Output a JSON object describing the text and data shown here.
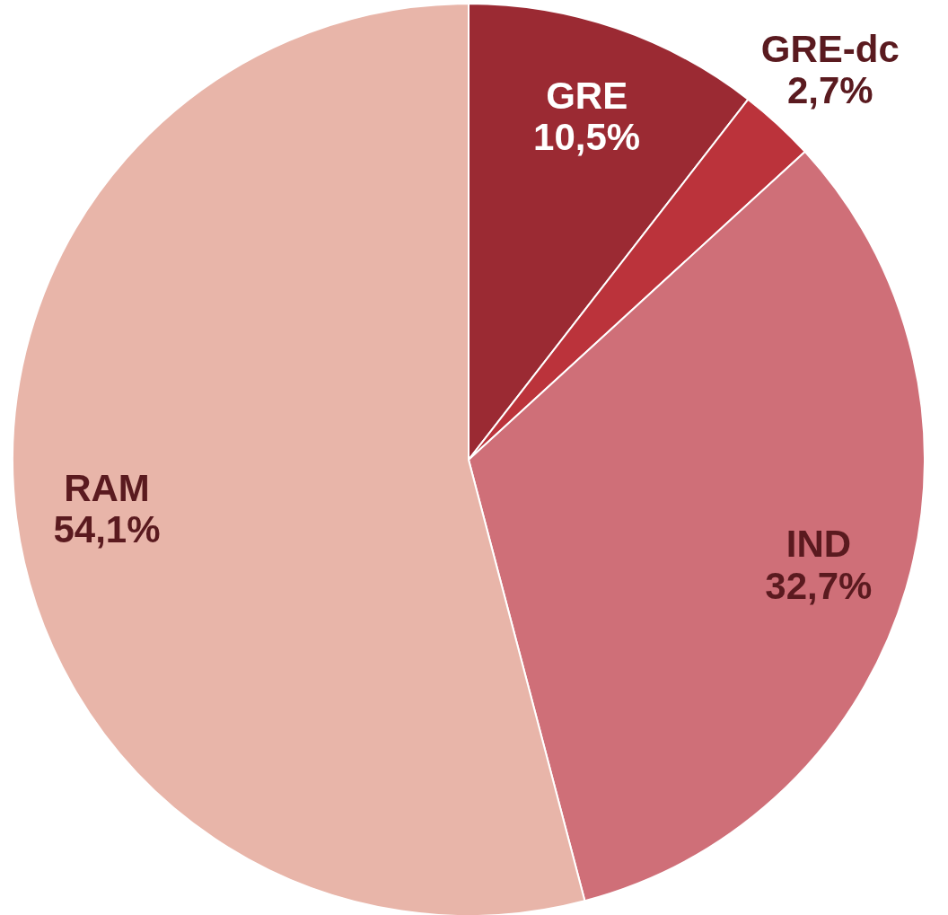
{
  "chart_data": {
    "type": "pie",
    "categories": [
      "GRE",
      "GRE-dc",
      "IND",
      "RAM"
    ],
    "values": [
      10.5,
      2.7,
      32.7,
      54.1
    ],
    "colors": [
      "#9b2a33",
      "#bb333b",
      "#cf6f78",
      "#e8b5a9"
    ],
    "value_labels": [
      "10,5%",
      "2,7%",
      "32,7%",
      "54,1%"
    ],
    "legend": false
  }
}
